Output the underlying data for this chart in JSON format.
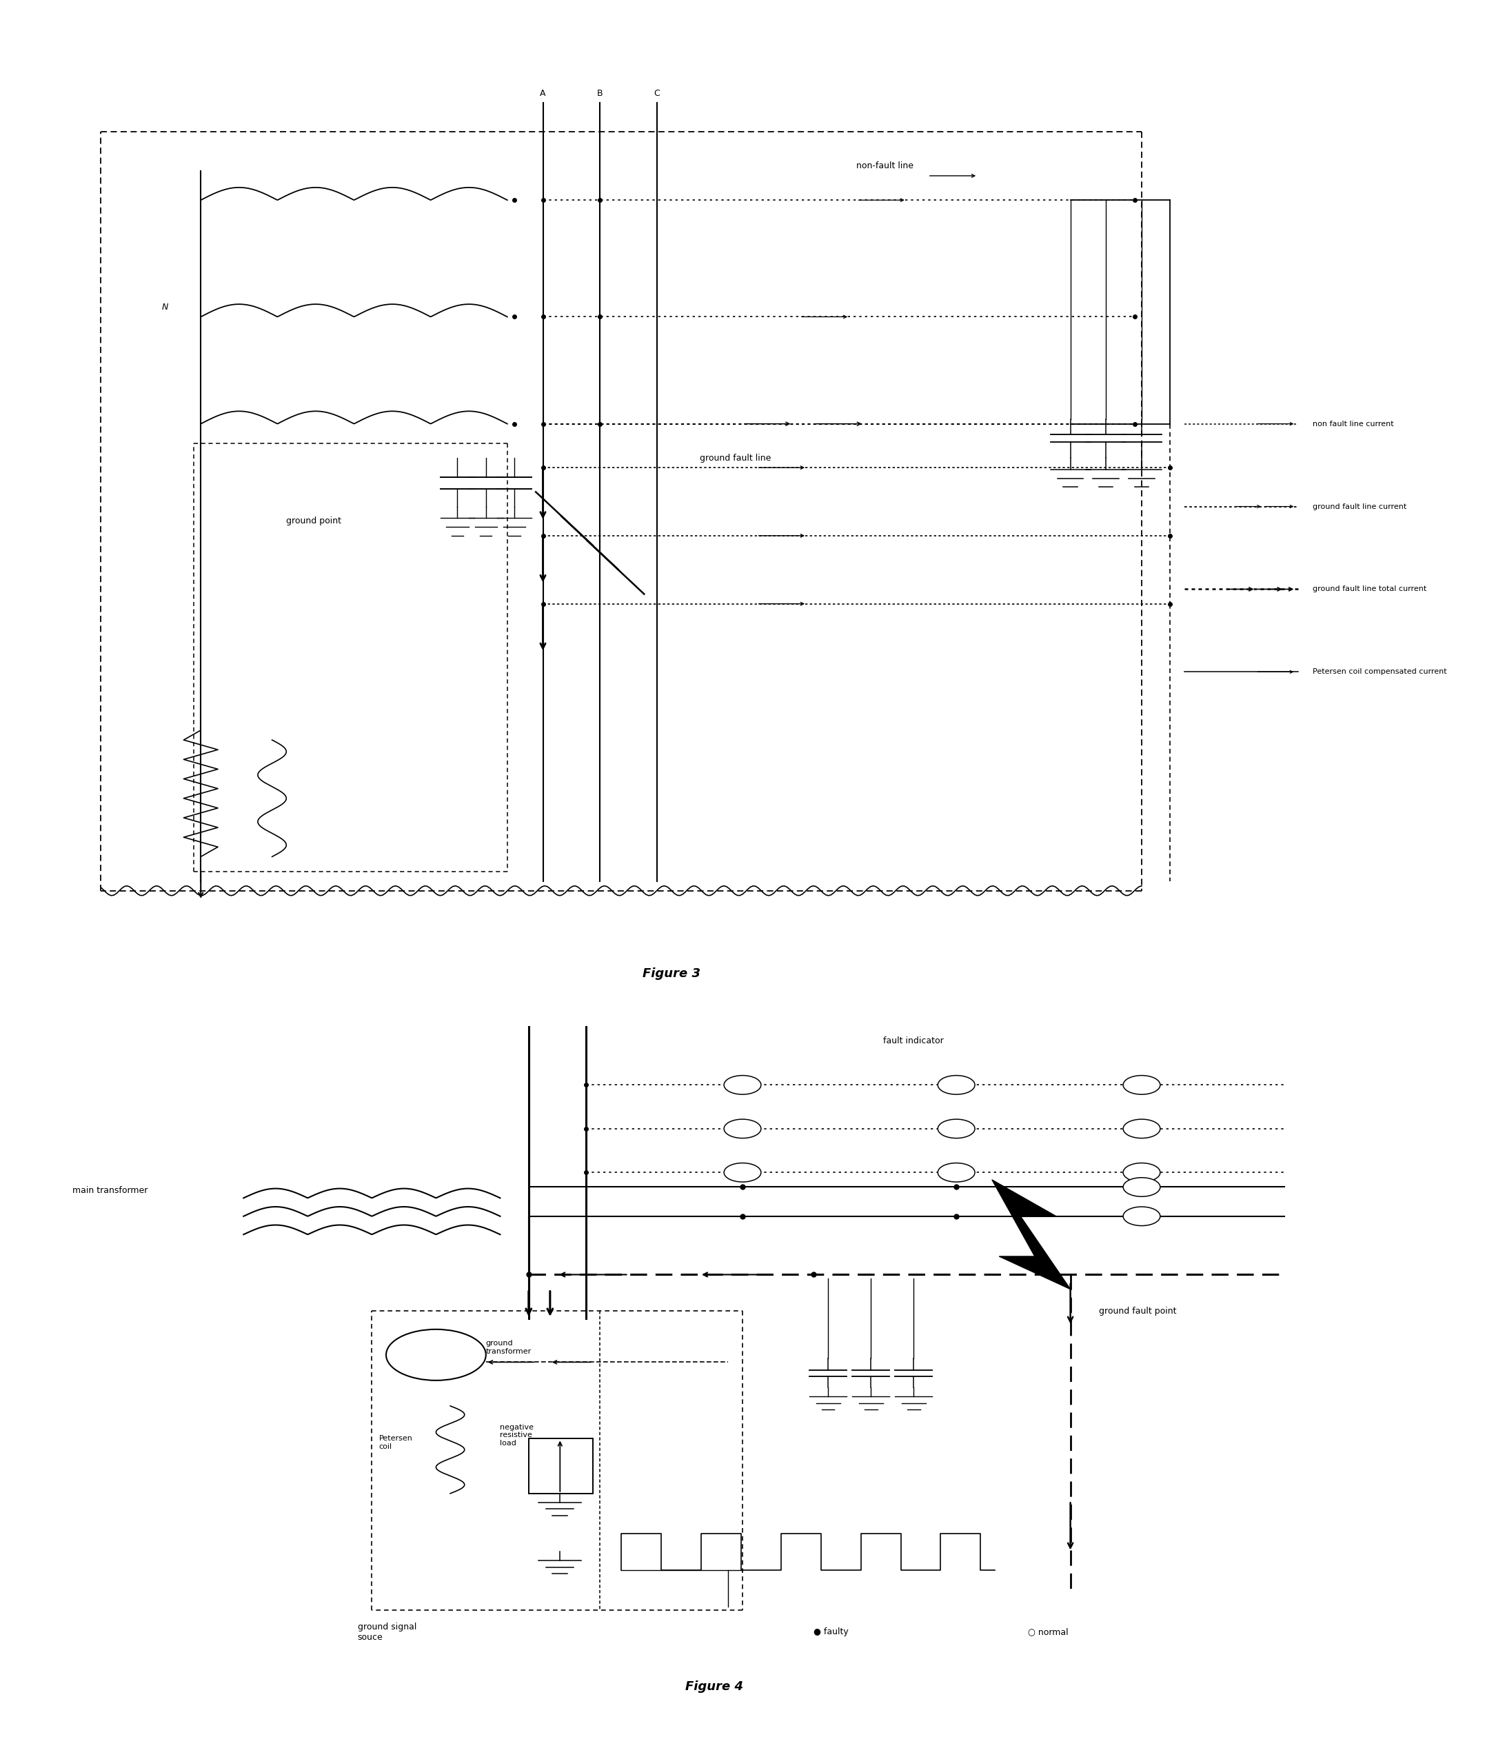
{
  "fig_width": 21.54,
  "fig_height": 25.19,
  "bg_color": "#ffffff",
  "lc": "#000000",
  "fig3_caption": "Figure 3",
  "fig4_caption": "Figure 4",
  "legend3_non_fault": "non fault line current",
  "legend3_ground_fault": "ground fault line current",
  "legend3_total": "ground fault line total current",
  "legend3_petersen": "Petersen coil compensated current",
  "label3_A": "A",
  "label3_B": "B",
  "label3_C": "C",
  "label3_N": "N",
  "label3_non_fault_line": "non-fault line",
  "label3_ground_fault_line": "ground fault line",
  "label3_ground_point": "ground point",
  "label4_fault_indicator": "fault indicator",
  "label4_main_transformer": "main transformer",
  "label4_ground_transformer": "ground\ntransformer",
  "label4_petersen_coil": "Petersen\ncoil",
  "label4_negative_resistive": "negative\nresistive\nload",
  "label4_ground_signal": "ground signal\nsouce",
  "label4_ground_fault_point": "ground fault point",
  "label4_faulty": "● faulty",
  "label4_normal": "○ normal"
}
